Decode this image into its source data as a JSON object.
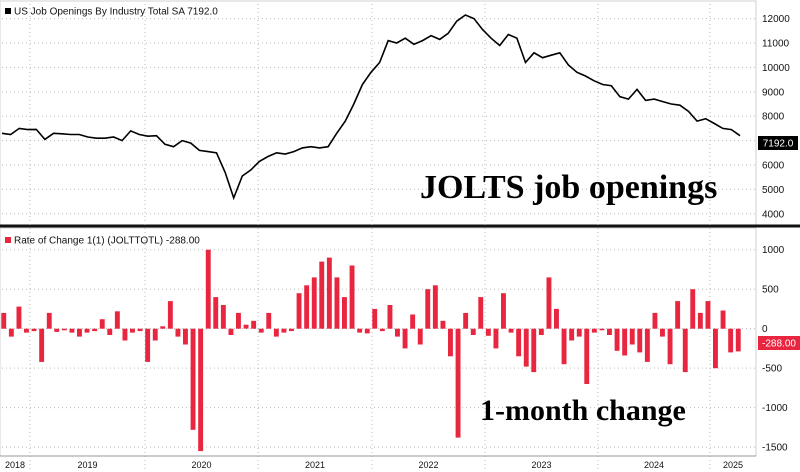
{
  "chart_data": [
    {
      "type": "line",
      "legend": {
        "label": "US Job Openings By Industry Total SA",
        "last_value": "7192.0",
        "color": "#000000",
        "placement": "top-left"
      },
      "annotation": "JOLTS job openings",
      "last_value_tag": "7192.0",
      "y_ticks": [
        "4000",
        "5000",
        "6000",
        "7000",
        "8000",
        "9000",
        "10000",
        "11000",
        "12000"
      ],
      "ylim": [
        3500,
        12600
      ],
      "x": [
        "2018-01",
        "2018-02",
        "2018-03",
        "2018-04",
        "2018-05",
        "2018-06",
        "2018-07",
        "2018-08",
        "2018-09",
        "2018-10",
        "2018-11",
        "2018-12",
        "2019-01",
        "2019-02",
        "2019-03",
        "2019-04",
        "2019-05",
        "2019-06",
        "2019-07",
        "2019-08",
        "2019-09",
        "2019-10",
        "2019-11",
        "2019-12",
        "2020-01",
        "2020-02",
        "2020-03",
        "2020-04",
        "2020-05",
        "2020-06",
        "2020-07",
        "2020-08",
        "2020-09",
        "2020-10",
        "2020-11",
        "2020-12",
        "2021-01",
        "2021-02",
        "2021-03",
        "2021-04",
        "2021-05",
        "2021-06",
        "2021-07",
        "2021-08",
        "2021-09",
        "2021-10",
        "2021-11",
        "2021-12",
        "2022-01",
        "2022-02",
        "2022-03",
        "2022-04",
        "2022-05",
        "2022-06",
        "2022-07",
        "2022-08",
        "2022-09",
        "2022-10",
        "2022-11",
        "2022-12",
        "2023-01",
        "2023-02",
        "2023-03",
        "2023-04",
        "2023-05",
        "2023-06",
        "2023-07",
        "2023-08",
        "2023-09",
        "2023-10",
        "2023-11",
        "2023-12",
        "2024-01",
        "2024-02",
        "2024-03",
        "2024-04",
        "2024-05",
        "2024-06",
        "2024-07",
        "2024-08",
        "2024-09",
        "2024-10",
        "2024-11",
        "2024-12",
        "2025-01",
        "2025-02",
        "2025-03"
      ],
      "values": [
        7300,
        7250,
        7500,
        7450,
        7460,
        7050,
        7300,
        7280,
        7250,
        7250,
        7150,
        7100,
        7100,
        7150,
        7000,
        7400,
        7250,
        7180,
        7200,
        6850,
        6750,
        7000,
        6900,
        6600,
        6550,
        6500,
        5700,
        4650,
        5550,
        5800,
        6150,
        6350,
        6500,
        6450,
        6550,
        6700,
        6750,
        6700,
        6750,
        7300,
        7800,
        8500,
        9300,
        9800,
        10200,
        11100,
        11000,
        11200,
        10950,
        11100,
        11300,
        11150,
        11400,
        11900,
        12150,
        12000,
        11550,
        11200,
        10900,
        11350,
        11200,
        10200,
        10600,
        10400,
        10500,
        10600,
        10100,
        9800,
        9650,
        9450,
        9300,
        9250,
        8800,
        8700,
        9100,
        8650,
        8700,
        8600,
        8500,
        8450,
        8200,
        7800,
        7900,
        7700,
        7500,
        7450,
        7200
      ]
    },
    {
      "type": "bar",
      "legend": {
        "label": "Rate of Change 1(1) (JOLTTOTL)",
        "last_value": "-288.00",
        "color": "#e8263f",
        "placement": "top-left"
      },
      "annotation": "1-month change",
      "last_value_tag": "-288.00",
      "y_ticks": [
        "-1500",
        "-1000",
        "-500",
        "0",
        "500",
        "1000"
      ],
      "ylim": [
        -1600,
        1250
      ],
      "values": [
        200,
        -100,
        280,
        -50,
        -30,
        -420,
        200,
        -40,
        -20,
        -50,
        -100,
        -50,
        -30,
        120,
        -80,
        220,
        -150,
        -50,
        -30,
        -420,
        -150,
        30,
        350,
        -100,
        -200,
        -1280,
        -1550,
        1000,
        400,
        300,
        -80,
        200,
        50,
        100,
        -50,
        200,
        -100,
        -50,
        -30,
        450,
        550,
        650,
        850,
        900,
        650,
        400,
        800,
        -50,
        -60,
        250,
        -30,
        300,
        -100,
        -250,
        180,
        -200,
        500,
        550,
        100,
        -350,
        -1380,
        200,
        -80,
        400,
        -90,
        -250,
        450,
        -50,
        -350,
        -480,
        -550,
        -80,
        650,
        250,
        -450,
        -150,
        -100,
        -700,
        -50,
        -20,
        -80,
        -280,
        -340,
        -200,
        -300,
        -420,
        200,
        -100,
        -450,
        350,
        -550,
        500,
        200,
        350,
        -500,
        230,
        -300,
        -288
      ],
      "x_axis_labels": [
        "2018",
        "2019",
        "2020",
        "2021",
        "2022",
        "2023",
        "2024",
        "2025"
      ]
    }
  ]
}
